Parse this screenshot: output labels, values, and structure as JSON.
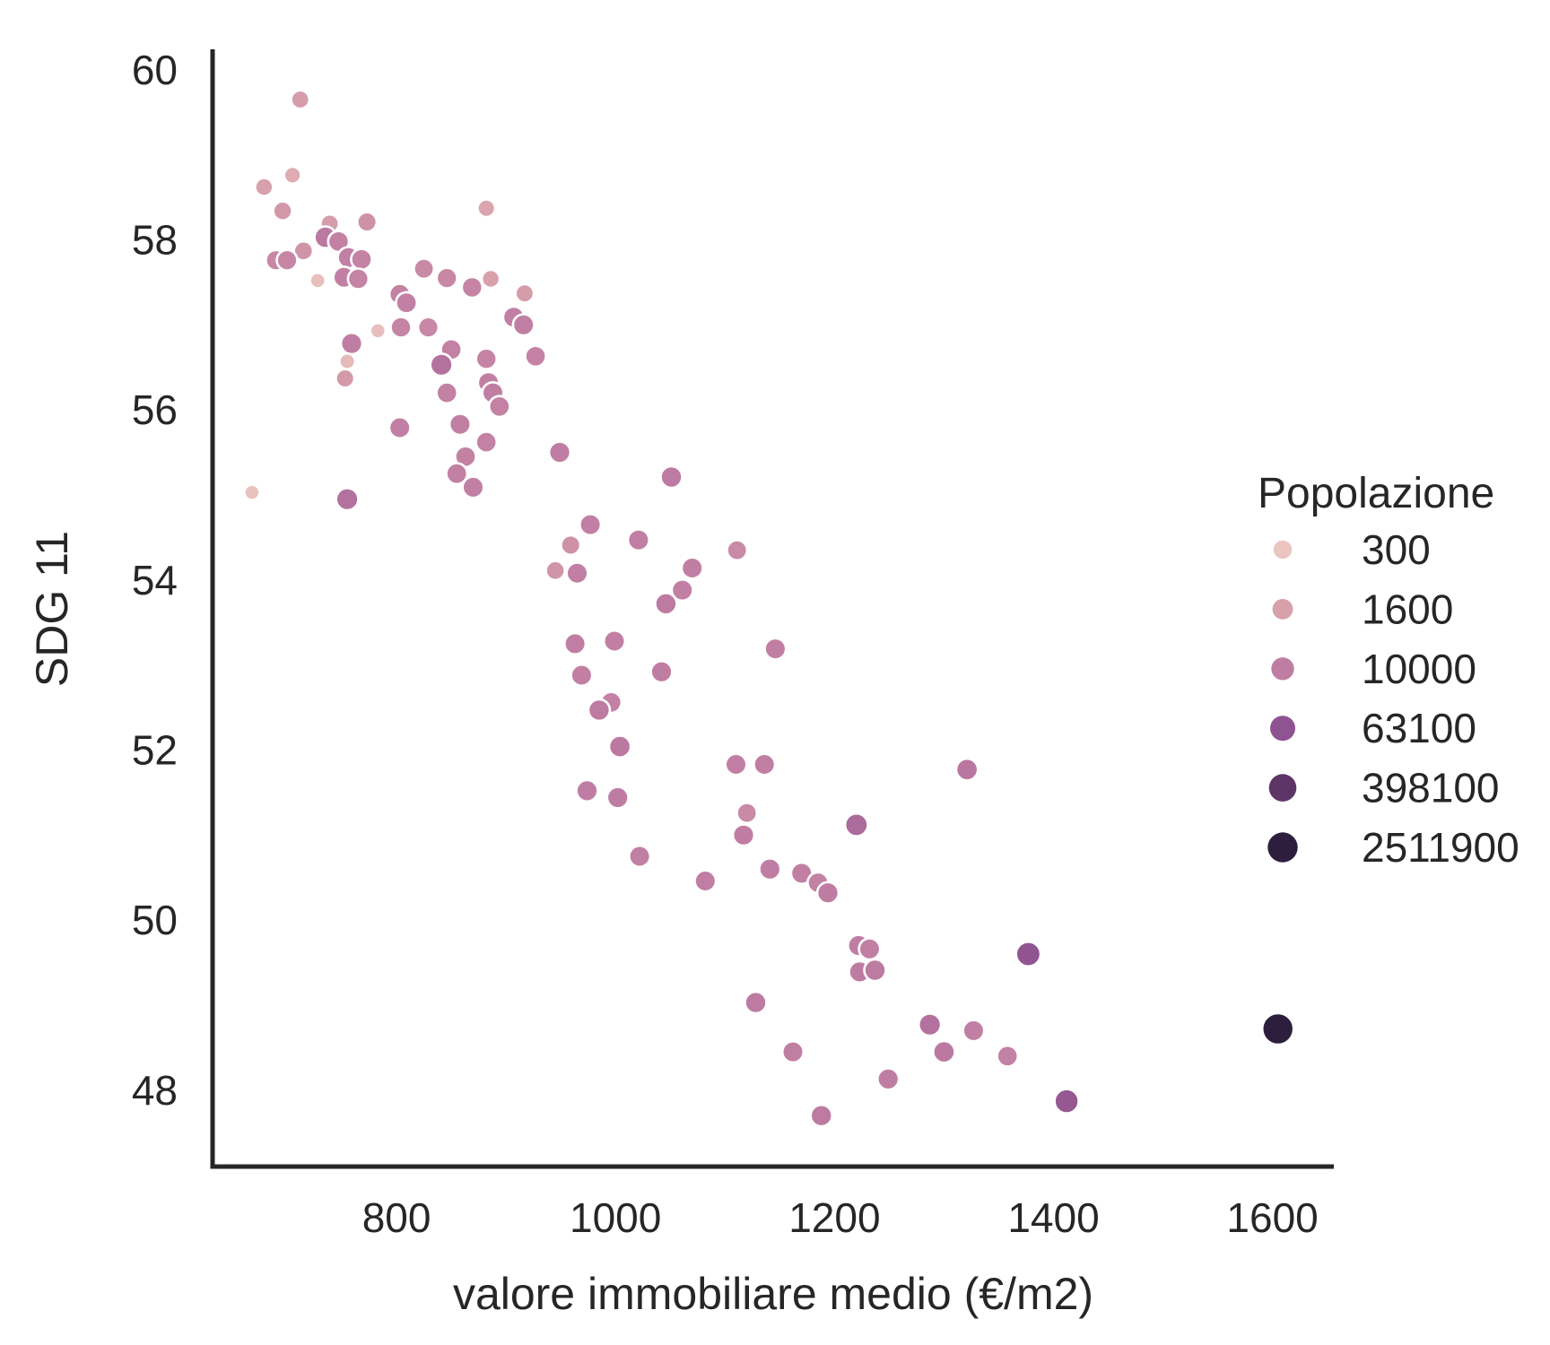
{
  "chart_data": {
    "type": "scatter",
    "title": "",
    "xlabel": "valore immobiliare medio (€/m2)",
    "ylabel": "SDG 11",
    "xlim": [
      632,
      1656
    ],
    "ylim": [
      47.08,
      60.24
    ],
    "x_ticks": [
      800,
      1000,
      1200,
      1400,
      1600
    ],
    "y_ticks": [
      48,
      50,
      52,
      54,
      56,
      58,
      60
    ],
    "grid": false,
    "spine_color": "#262626",
    "point_edge_color": "#ffffff",
    "legend": {
      "title": "Popolazione",
      "position": "right",
      "entries": [
        300,
        1600,
        10000,
        63100,
        398100,
        2511900
      ]
    },
    "color_by": "Popolazione",
    "size_by": "Popolazione",
    "palette_anchors": [
      {
        "pop": 300,
        "color": "#eac5c1"
      },
      {
        "pop": 1600,
        "color": "#d8a0ab"
      },
      {
        "pop": 10000,
        "color": "#c07da3"
      },
      {
        "pop": 63100,
        "color": "#8f5391"
      },
      {
        "pop": 398100,
        "color": "#5d3567"
      },
      {
        "pop": 2511900,
        "color": "#2d1e3e"
      }
    ],
    "points_format": [
      "valore_immobiliare_eur_m2",
      "sdg11",
      "popolazione"
    ],
    "points": [
      [
        712,
        59.65,
        2000
      ],
      [
        705,
        58.76,
        900
      ],
      [
        679,
        58.62,
        1600
      ],
      [
        696,
        58.34,
        2500
      ],
      [
        882,
        58.37,
        1300
      ],
      [
        739,
        58.19,
        2000
      ],
      [
        773,
        58.21,
        3500
      ],
      [
        735,
        58.03,
        12000
      ],
      [
        747,
        57.98,
        8000
      ],
      [
        715,
        57.87,
        3000
      ],
      [
        690,
        57.76,
        6000
      ],
      [
        700,
        57.76,
        6500
      ],
      [
        756,
        57.79,
        9000
      ],
      [
        768,
        57.77,
        7500
      ],
      [
        825,
        57.66,
        5000
      ],
      [
        728,
        57.52,
        400
      ],
      [
        752,
        57.56,
        9000
      ],
      [
        765,
        57.54,
        7000
      ],
      [
        846,
        57.55,
        6000
      ],
      [
        869,
        57.44,
        7000
      ],
      [
        886,
        57.54,
        1600
      ],
      [
        803,
        57.36,
        8000
      ],
      [
        809,
        57.26,
        8500
      ],
      [
        917,
        57.37,
        2000
      ],
      [
        907,
        57.09,
        9000
      ],
      [
        916,
        57.0,
        9500
      ],
      [
        783,
        56.93,
        400
      ],
      [
        804,
        56.97,
        7000
      ],
      [
        829,
        56.97,
        6000
      ],
      [
        759,
        56.78,
        10000
      ],
      [
        755,
        56.57,
        500
      ],
      [
        753,
        56.37,
        2200
      ],
      [
        850,
        56.71,
        8000
      ],
      [
        841,
        56.53,
        16000
      ],
      [
        882,
        56.6,
        7000
      ],
      [
        927,
        56.63,
        7500
      ],
      [
        846,
        56.2,
        8000
      ],
      [
        884,
        56.32,
        9000
      ],
      [
        888,
        56.2,
        9500
      ],
      [
        894,
        56.04,
        8000
      ],
      [
        803,
        55.79,
        9000
      ],
      [
        858,
        55.83,
        9500
      ],
      [
        882,
        55.62,
        8000
      ],
      [
        668,
        55.03,
        350
      ],
      [
        755,
        54.95,
        16000
      ],
      [
        863,
        55.45,
        8000
      ],
      [
        855,
        55.25,
        8500
      ],
      [
        870,
        55.09,
        9000
      ],
      [
        949,
        55.5,
        10000
      ],
      [
        1051,
        55.21,
        11000
      ],
      [
        977,
        54.65,
        9000
      ],
      [
        959,
        54.41,
        3500
      ],
      [
        1021,
        54.47,
        9500
      ],
      [
        1111,
        54.35,
        5000
      ],
      [
        945,
        54.11,
        3000
      ],
      [
        965,
        54.08,
        9000
      ],
      [
        1070,
        54.14,
        9500
      ],
      [
        1061,
        53.88,
        9000
      ],
      [
        1046,
        53.72,
        11000
      ],
      [
        963,
        53.25,
        9500
      ],
      [
        999,
        53.28,
        9000
      ],
      [
        1146,
        53.19,
        9500
      ],
      [
        969,
        52.88,
        9000
      ],
      [
        1042,
        52.92,
        10000
      ],
      [
        996,
        52.56,
        8000
      ],
      [
        985,
        52.47,
        11000
      ],
      [
        1004,
        52.04,
        12000
      ],
      [
        1110,
        51.83,
        9000
      ],
      [
        1136,
        51.83,
        9500
      ],
      [
        1321,
        51.77,
        13000
      ],
      [
        1220,
        51.12,
        22000
      ],
      [
        974,
        51.52,
        10000
      ],
      [
        1002,
        51.44,
        10500
      ],
      [
        1120,
        51.26,
        5000
      ],
      [
        1117,
        51.0,
        10000
      ],
      [
        1022,
        50.75,
        9000
      ],
      [
        1082,
        50.46,
        9500
      ],
      [
        1141,
        50.6,
        10000
      ],
      [
        1170,
        50.55,
        9000
      ],
      [
        1185,
        50.44,
        8000
      ],
      [
        1194,
        50.32,
        10500
      ],
      [
        1222,
        49.7,
        10000
      ],
      [
        1232,
        49.66,
        9000
      ],
      [
        1223,
        49.39,
        10500
      ],
      [
        1237,
        49.41,
        11000
      ],
      [
        1377,
        49.6,
        60000
      ],
      [
        1128,
        49.03,
        11000
      ],
      [
        1162,
        48.45,
        9500
      ],
      [
        1287,
        48.77,
        16000
      ],
      [
        1300,
        48.45,
        12000
      ],
      [
        1327,
        48.7,
        9000
      ],
      [
        1358,
        48.4,
        8000
      ],
      [
        1412,
        47.87,
        50000
      ],
      [
        1188,
        47.7,
        11000
      ],
      [
        1249,
        48.13,
        10000
      ],
      [
        1605,
        48.72,
        2500000
      ]
    ]
  }
}
